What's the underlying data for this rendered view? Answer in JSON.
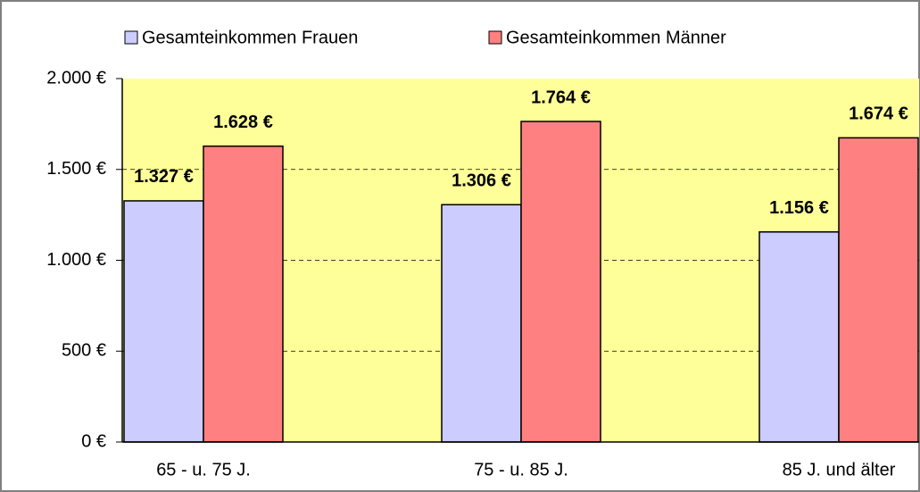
{
  "chart_data": {
    "type": "bar",
    "categories": [
      "65 - u. 75 J.",
      "75 - u. 85 J.",
      "85 J. und älter"
    ],
    "series": [
      {
        "name": "Gesamteinkommen Frauen",
        "color": "#ccccff",
        "values": [
          1327,
          1306,
          1156
        ],
        "value_labels": [
          "1.327 €",
          "1.306 €",
          "1.156 €"
        ]
      },
      {
        "name": "Gesamteinkommen Männer",
        "color": "#ff8080",
        "values": [
          1628,
          1764,
          1674
        ],
        "value_labels": [
          "1.628 €",
          "1.764 €",
          "1.674 €"
        ]
      }
    ],
    "ylim": [
      0,
      2000
    ],
    "yticks": [
      {
        "value": 0,
        "label": "0 €"
      },
      {
        "value": 500,
        "label": "500 €"
      },
      {
        "value": 1000,
        "label": "1.000 €"
      },
      {
        "value": 1500,
        "label": "1.500 €"
      },
      {
        "value": 2000,
        "label": "2.000 €"
      }
    ],
    "grid": true,
    "legend": "top",
    "plot_background": "#ffff99"
  }
}
